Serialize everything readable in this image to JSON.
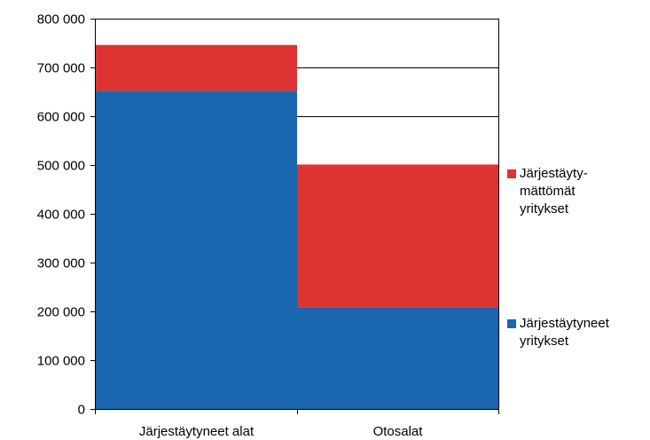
{
  "chart_data": {
    "type": "bar",
    "stacked": true,
    "categories": [
      "Järjestäytyneet alat",
      "Otosalat"
    ],
    "series": [
      {
        "name": "Järjestäytyneet\nyritykset",
        "values": [
          652000,
          208000
        ],
        "color": "#1a66b0"
      },
      {
        "name": "Järjestäytymättömät yritykset",
        "values": [
          94000,
          293000
        ],
        "color": "#dd3333"
      }
    ],
    "ylim": [
      0,
      800000
    ],
    "yticks": [
      0,
      100000,
      200000,
      300000,
      400000,
      500000,
      600000,
      700000,
      800000
    ],
    "ytick_labels": [
      "0",
      "100 000",
      "200 000",
      "300 000",
      "400 000",
      "500 000",
      "600 000",
      "700 000",
      "800 000"
    ],
    "grid": true,
    "legend_position": "right"
  },
  "legend": {
    "items": [
      {
        "label": "Järjestäyty-\nmättömät\nyritykset",
        "color": "#dd3333"
      },
      {
        "label": "Järjestäytyneet\nyritykset",
        "color": "#1a66b0"
      }
    ]
  }
}
